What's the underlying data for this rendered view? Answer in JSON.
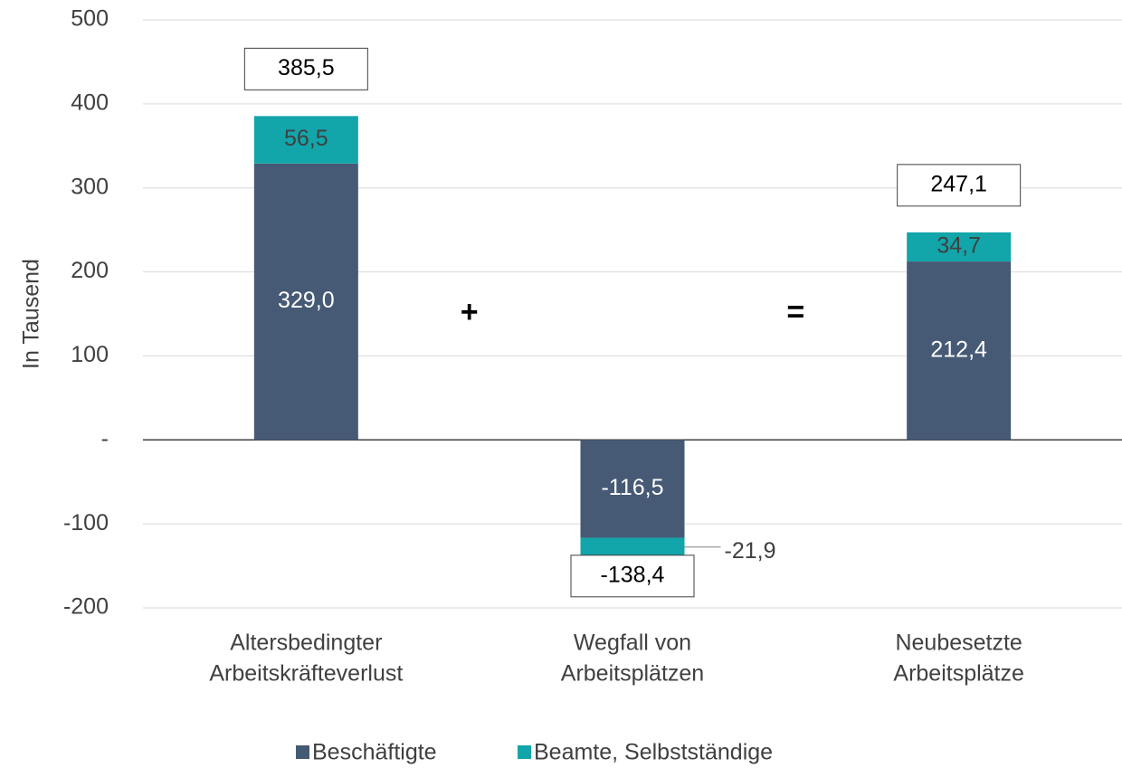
{
  "chart_data": {
    "type": "bar",
    "stacked": true,
    "y_label": "In Tausend",
    "categories": [
      [
        "Altersbedingter",
        "Arbeitskräfteverlust"
      ],
      [
        "Wegfall von",
        "Arbeitsplätzen"
      ],
      [
        "Neubesetzte",
        "Arbeitsplätze"
      ]
    ],
    "series": [
      {
        "name": "Beschäftigte",
        "color": "#465a75",
        "values": [
          329.0,
          -116.5,
          212.4
        ],
        "value_labels": [
          "329,0",
          "-116,5",
          "212,4"
        ]
      },
      {
        "name": "Beamte, Selbstständige",
        "color": "#12a5aa",
        "values": [
          56.5,
          -21.9,
          34.7
        ],
        "value_labels": [
          "56,5",
          "-21,9",
          "34,7"
        ]
      }
    ],
    "totals": {
      "values": [
        385.5,
        -138.4,
        247.1
      ],
      "value_labels": [
        "385,5",
        "-138,4",
        "247,1"
      ]
    },
    "annotations": [
      "+",
      "="
    ],
    "ylim": [
      -200,
      500
    ],
    "yticks": [
      -200,
      -100,
      {
        "value": 0,
        "label": "-"
      },
      100,
      200,
      300,
      400,
      500
    ],
    "grid": true,
    "legend": "bottom"
  }
}
